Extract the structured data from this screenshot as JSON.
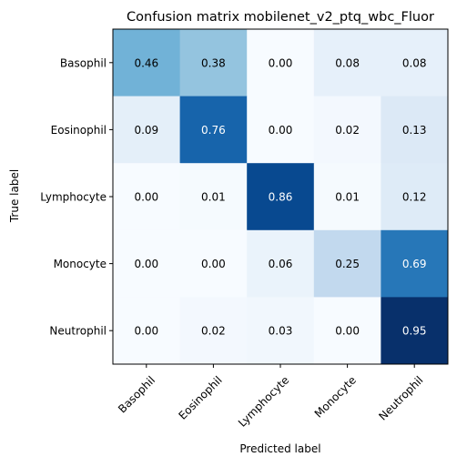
{
  "chart_data": {
    "type": "heatmap",
    "title": "Confusion matrix mobilenet_v2_ptq_wbc_Fluor",
    "xlabel": "Predicted label",
    "ylabel": "True label",
    "x_categories": [
      "Basophil",
      "Eosinophil",
      "Lymphocyte",
      "Monocyte",
      "Neutrophil"
    ],
    "y_categories": [
      "Basophil",
      "Eosinophil",
      "Lymphocyte",
      "Monocyte",
      "Neutrophil"
    ],
    "values": [
      [
        0.46,
        0.38,
        0.0,
        0.08,
        0.08
      ],
      [
        0.09,
        0.76,
        0.0,
        0.02,
        0.13
      ],
      [
        0.0,
        0.01,
        0.86,
        0.01,
        0.12
      ],
      [
        0.0,
        0.0,
        0.06,
        0.25,
        0.69
      ],
      [
        0.0,
        0.02,
        0.03,
        0.0,
        0.95
      ]
    ],
    "colormap": "Blues",
    "value_range": [
      0,
      0.95
    ]
  }
}
